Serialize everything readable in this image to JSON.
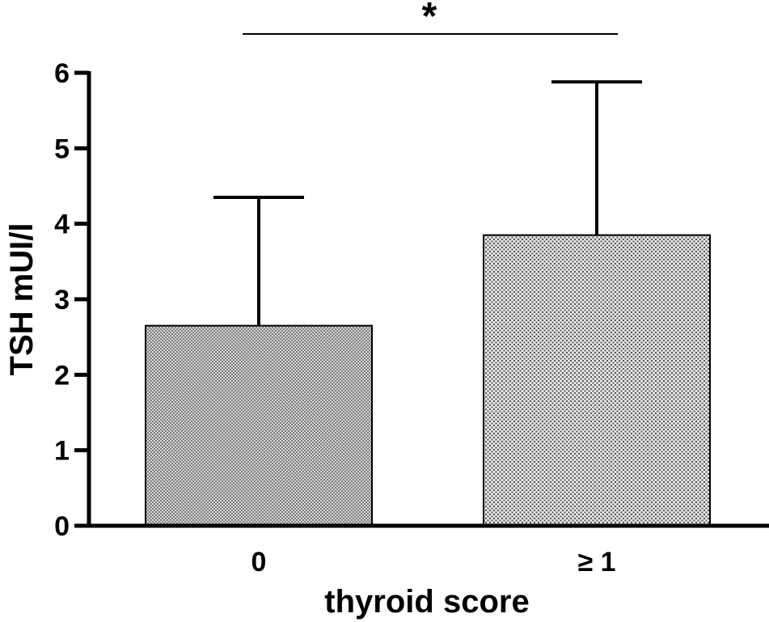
{
  "chart_data": {
    "type": "bar",
    "categories": [
      "0",
      "≥ 1"
    ],
    "values": [
      2.65,
      3.85
    ],
    "error_upper": [
      4.35,
      5.88
    ],
    "xlabel": "thyroid score",
    "ylabel": "TSH mUI/l",
    "ylim": [
      0,
      6
    ],
    "yticks": [
      0,
      1,
      2,
      3,
      4,
      5,
      6
    ],
    "grid": false,
    "legend": "none",
    "significance": {
      "between": [
        "0",
        "≥ 1"
      ],
      "label": "*"
    },
    "bar_fills": [
      "#b4b4b4",
      "#c2c2c2"
    ]
  }
}
